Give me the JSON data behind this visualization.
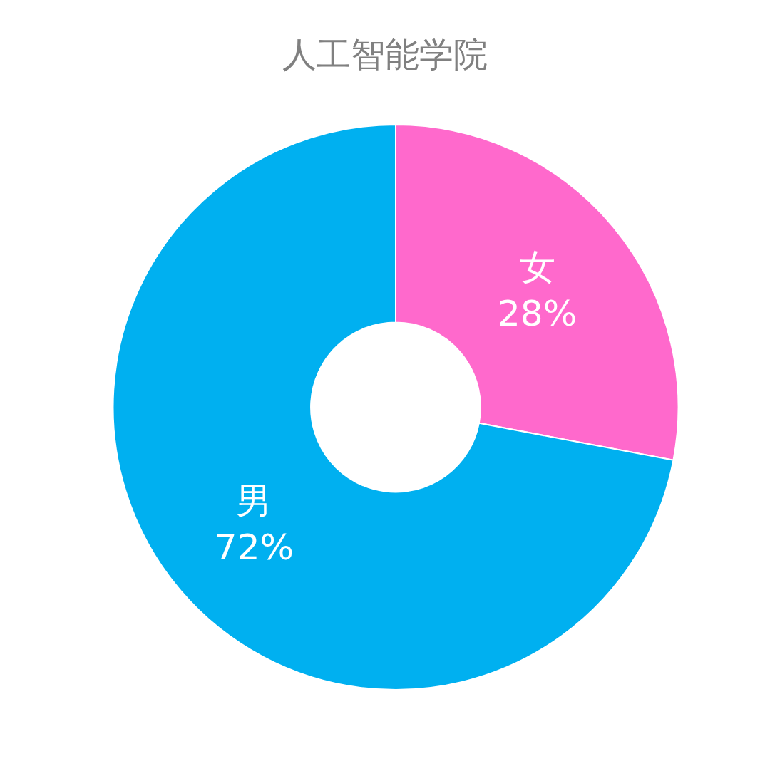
{
  "chart_data": {
    "type": "donut",
    "title": "人工智能学院",
    "categories": [
      "女",
      "男"
    ],
    "values": [
      28,
      72
    ],
    "value_labels": [
      "28%",
      "72%"
    ],
    "colors": [
      "#ff69cc",
      "#00b0f0"
    ]
  }
}
